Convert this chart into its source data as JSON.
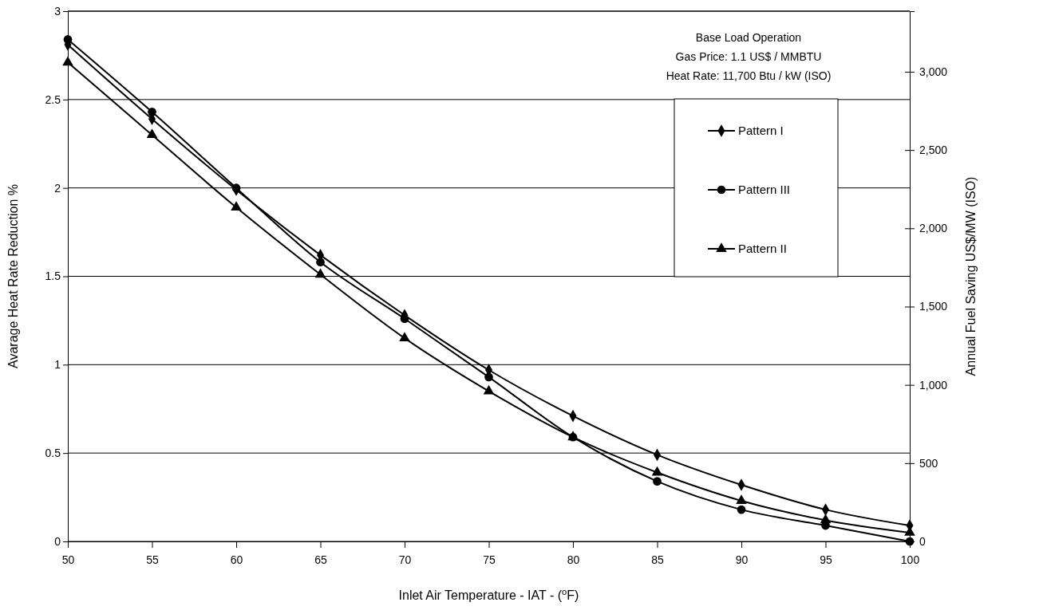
{
  "chart_data": {
    "type": "line",
    "xlabel": "Inlet Air Temperature - IAT - ($^{o}$F)",
    "ylabel": "Avarage Heat Rate Reduction %",
    "y2label": "Annual Fuel Saving US$/MW (ISO)",
    "annotations": [
      "Base Load Operation",
      "Gas Price: 1.1 US$ / MMBTU",
      "Heat Rate: 11,700 Btu / kW (ISO)"
    ],
    "x": [
      50,
      55,
      60,
      65,
      70,
      75,
      80,
      85,
      90,
      95,
      100
    ],
    "xlim": [
      50,
      100
    ],
    "xticks": [
      50,
      55,
      60,
      65,
      70,
      75,
      80,
      85,
      90,
      95,
      100
    ],
    "ylim": [
      0,
      3
    ],
    "yticks": [
      0,
      0.5,
      1,
      1.5,
      2,
      2.5,
      3
    ],
    "y2lim": [
      0,
      3387
    ],
    "y2ticks": [
      {
        "value": 0,
        "label": "0"
      },
      {
        "value": 500,
        "label": "500"
      },
      {
        "value": 1000,
        "label": "1,000"
      },
      {
        "value": 1500,
        "label": "1,500"
      },
      {
        "value": 2000,
        "label": "2,000"
      },
      {
        "value": 2500,
        "label": "2,500"
      },
      {
        "value": 3000,
        "label": "3,000"
      }
    ],
    "grid": "y",
    "legend": "top right",
    "line_style": "solid",
    "series": [
      {
        "name": "Pattern I",
        "color": "#000000",
        "marker": "diamond",
        "values": [
          2.81,
          2.39,
          1.99,
          1.62,
          1.28,
          0.97,
          0.71,
          0.49,
          0.32,
          0.18,
          0.09
        ]
      },
      {
        "name": "Pattern III",
        "color": "#000000",
        "marker": "circle",
        "values": [
          2.84,
          2.43,
          2.0,
          1.58,
          1.26,
          0.93,
          0.59,
          0.34,
          0.18,
          0.09,
          0
        ]
      },
      {
        "name": "Pattern II",
        "color": "#000000",
        "marker": "triangle",
        "values": [
          2.71,
          2.3,
          1.89,
          1.51,
          1.15,
          0.85,
          0.59,
          0.39,
          0.23,
          0.12,
          0.05
        ]
      }
    ]
  }
}
